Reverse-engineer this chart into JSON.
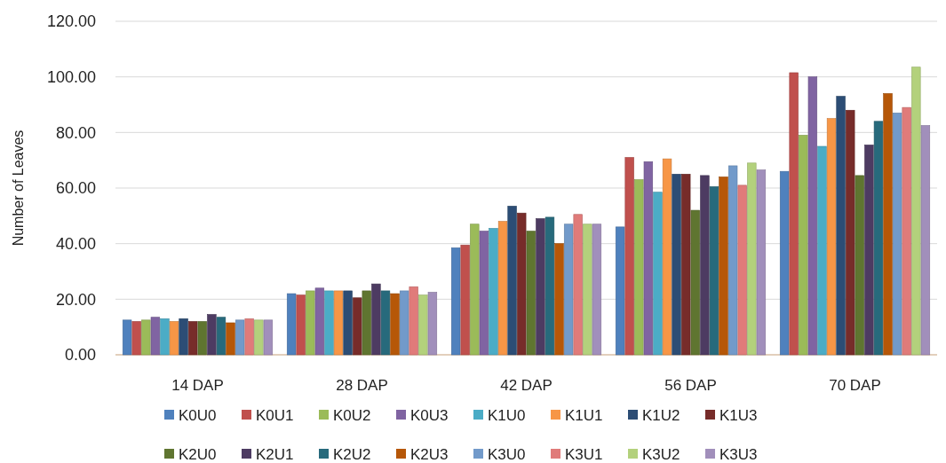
{
  "chart_data": {
    "type": "bar",
    "ylabel": "Number of Leaves",
    "categories": [
      "14 DAP",
      "28 DAP",
      "42 DAP",
      "56 DAP",
      "70 DAP"
    ],
    "ylim": [
      0,
      120
    ],
    "yticks": [
      {
        "value": 0,
        "label": "0.00"
      },
      {
        "value": 20,
        "label": "20.00"
      },
      {
        "value": 40,
        "label": "40.00"
      },
      {
        "value": 60,
        "label": "60.00"
      },
      {
        "value": 80,
        "label": "80.00"
      },
      {
        "value": 100,
        "label": "100.00"
      },
      {
        "value": 120,
        "label": "120.00"
      }
    ],
    "grid": "y",
    "legend": "bottom",
    "series": [
      {
        "name": "K0U0",
        "color": "#4f81bd",
        "values": [
          12.5,
          22,
          38.5,
          46,
          66
        ]
      },
      {
        "name": "K0U1",
        "color": "#c0504d",
        "values": [
          12,
          21.5,
          39.5,
          71,
          101.5
        ]
      },
      {
        "name": "K0U2",
        "color": "#9bbb59",
        "values": [
          12.5,
          23,
          47,
          63,
          79
        ]
      },
      {
        "name": "K0U3",
        "color": "#8064a2",
        "values": [
          13.5,
          24,
          44.5,
          69.5,
          100
        ]
      },
      {
        "name": "K1U0",
        "color": "#4bacc6",
        "values": [
          13,
          23,
          45.5,
          58.5,
          75
        ]
      },
      {
        "name": "K1U1",
        "color": "#f79646",
        "values": [
          12,
          23,
          48,
          70.5,
          85
        ]
      },
      {
        "name": "K1U2",
        "color": "#2c4d75",
        "values": [
          13,
          23,
          53.5,
          65,
          93
        ]
      },
      {
        "name": "K1U3",
        "color": "#772c2a",
        "values": [
          12,
          20.5,
          51,
          65,
          88
        ]
      },
      {
        "name": "K2U0",
        "color": "#5f7530",
        "values": [
          12,
          23,
          44.5,
          52,
          64.5
        ]
      },
      {
        "name": "K2U1",
        "color": "#4d3b62",
        "values": [
          14.5,
          25.5,
          49,
          64.5,
          75.5
        ]
      },
      {
        "name": "K2U2",
        "color": "#276a7c",
        "values": [
          13.5,
          23,
          49.5,
          60.5,
          84
        ]
      },
      {
        "name": "K2U3",
        "color": "#b65708",
        "values": [
          11.5,
          22,
          40,
          64,
          94
        ]
      },
      {
        "name": "K3U0",
        "color": "#729aca",
        "values": [
          12.5,
          23,
          47,
          68,
          87
        ]
      },
      {
        "name": "K3U1",
        "color": "#e07b7a",
        "values": [
          13,
          24.5,
          50.5,
          61,
          89
        ]
      },
      {
        "name": "K3U2",
        "color": "#b3d17c",
        "values": [
          12.5,
          21.5,
          47,
          69,
          103.5
        ]
      },
      {
        "name": "K3U3",
        "color": "#a18fbb",
        "values": [
          12.5,
          22.5,
          47,
          66.5,
          82.5
        ]
      }
    ]
  }
}
